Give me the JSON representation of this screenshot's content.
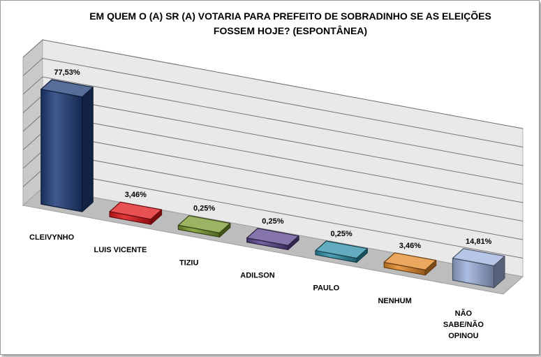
{
  "chart_data": {
    "type": "bar",
    "title": [
      "EM QUEM O (A) SR (A) VOTARIA PARA PREFEITO DE SOBRADINHO SE AS ELEIÇÕES",
      "FOSSEM HOJE? (ESPONTÂNEA)"
    ],
    "categories": [
      [
        "CLEIVYNHO"
      ],
      [
        "LUIS VICENTE"
      ],
      [
        "TIZIU"
      ],
      [
        "ADILSON"
      ],
      [
        "PAULO"
      ],
      [
        "NENHUM"
      ],
      [
        "NÃO",
        "SABE/NÃO",
        "OPINOU"
      ]
    ],
    "values": [
      77.53,
      3.46,
      0.25,
      0.25,
      0.25,
      3.46,
      14.81
    ],
    "value_labels": [
      "77,53%",
      "3,46%",
      "0,25%",
      "0,25%",
      "0,25%",
      "3,46%",
      "14,81%"
    ],
    "colors": [
      "#1f3d7a",
      "#e0161b",
      "#7a9a2e",
      "#5c4790",
      "#2f8fa8",
      "#e58a2a",
      "#9fb3df"
    ],
    "ylim": [
      0,
      100
    ],
    "grid": true,
    "legend": "none",
    "style": "3d-column"
  }
}
